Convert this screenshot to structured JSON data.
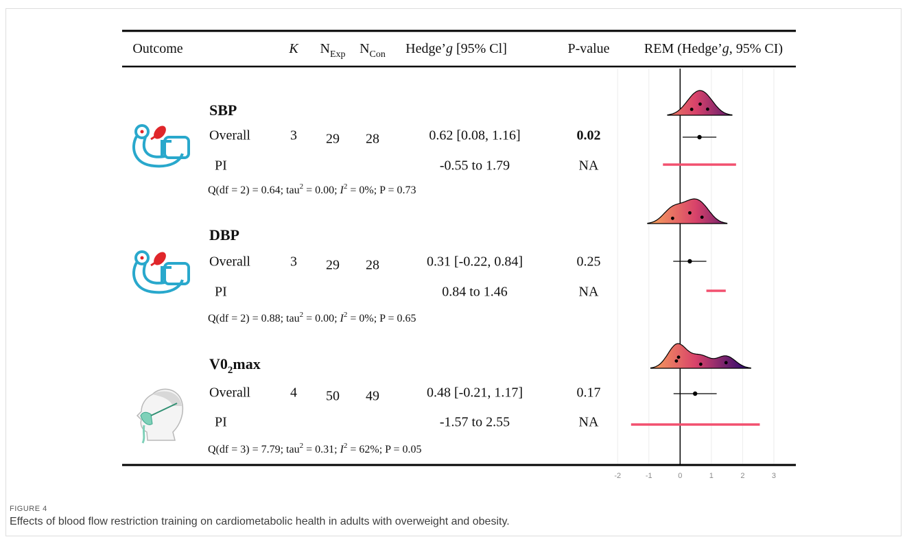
{
  "header": {
    "columns": [
      [
        {
          "text": "Outcome"
        }
      ],
      [
        {
          "text": "K",
          "style": "i"
        }
      ],
      [
        {
          "text": "N"
        },
        {
          "text": "Exp",
          "style": "sub"
        }
      ],
      [
        {
          "text": "N"
        },
        {
          "text": "Con",
          "style": "sub"
        }
      ],
      [
        {
          "text": "Hedge’"
        },
        {
          "text": "g",
          "style": "i"
        },
        {
          "text": " [95% Cl]"
        }
      ],
      [
        {
          "text": "P-value"
        }
      ],
      [
        {
          "text": "REM (Hedge’"
        },
        {
          "text": "g",
          "style": "i"
        },
        {
          "text": ", 95% CI)"
        }
      ]
    ]
  },
  "outcomes": [
    {
      "name": [
        {
          "text": "SBP"
        }
      ],
      "overall_label": "Overall",
      "k": 3,
      "n_exp": 29,
      "n_con": 28,
      "estimate": {
        "g": 0.62,
        "ci": [
          0.08,
          1.16
        ],
        "label": "0.62 [0.08, 1.16]"
      },
      "p": 0.02,
      "p_bold": true,
      "pi_label": "PI",
      "pi": [
        -0.55,
        1.79
      ],
      "pi_text": "-0.55 to 1.79",
      "pi_p": "NA",
      "studies": [
        0.37,
        0.64,
        0.88
      ],
      "heterogeneity": [
        {
          "text": "Q(df = 2) = 0.64; tau"
        },
        {
          "text": "2",
          "style": "sup"
        },
        {
          "text": " = 0.00; "
        },
        {
          "text": "I",
          "style": "i"
        },
        {
          "text": "2",
          "style": "sup"
        },
        {
          "text": " = 0%; P = 0.73"
        }
      ]
    },
    {
      "name": [
        {
          "text": "DBP"
        }
      ],
      "overall_label": "Overall",
      "k": 3,
      "n_exp": 29,
      "n_con": 28,
      "estimate": {
        "g": 0.31,
        "ci": [
          -0.22,
          0.84
        ],
        "label": "0.31 [-0.22, 0.84]"
      },
      "p": 0.25,
      "p_bold": false,
      "pi_label": "PI",
      "pi": [
        0.84,
        1.46
      ],
      "pi_text": "0.84 to 1.46",
      "pi_p": "NA",
      "studies": [
        -0.24,
        0.31,
        0.7
      ],
      "heterogeneity": [
        {
          "text": "Q(df = 2) = 0.88; tau"
        },
        {
          "text": "2",
          "style": "sup"
        },
        {
          "text": " = 0.00; "
        },
        {
          "text": "I",
          "style": "i"
        },
        {
          "text": "2",
          "style": "sup"
        },
        {
          "text": " = 0%; P = 0.65"
        }
      ]
    },
    {
      "name": [
        {
          "text": "V0"
        },
        {
          "text": "2",
          "style": "sub"
        },
        {
          "text": "max"
        }
      ],
      "overall_label": "Overall",
      "k": 4,
      "n_exp": 50,
      "n_con": 49,
      "estimate": {
        "g": 0.48,
        "ci": [
          -0.21,
          1.17
        ],
        "label": "0.48 [-0.21, 1.17]"
      },
      "p": 0.17,
      "p_bold": false,
      "pi_label": "PI",
      "pi": [
        -1.57,
        2.55
      ],
      "pi_text": "-1.57 to 2.55",
      "pi_p": "NA",
      "studies": [
        -0.12,
        -0.05,
        0.66,
        1.47
      ],
      "heterogeneity": [
        {
          "text": "Q(df = 3) = 7.79; tau"
        },
        {
          "text": "2",
          "style": "sup"
        },
        {
          "text": " = 0.31; "
        },
        {
          "text": "I",
          "style": "i"
        },
        {
          "text": "2",
          "style": "sup"
        },
        {
          "text": " = 62%; P = 0.05"
        }
      ]
    }
  ],
  "forest": {
    "xlim": [
      -2.4,
      3.55
    ],
    "xticks": [
      -2,
      -1,
      0,
      1,
      2,
      3
    ],
    "ci_color": "#000000",
    "pi_color": "#f2506f",
    "density_colors": [
      "#f7a35c",
      "#d8426a",
      "#3a0f6e"
    ]
  },
  "caption": {
    "label": "FIGURE 4",
    "text": "Effects of blood flow restriction training on cardiometabolic health in adults with overweight and obesity."
  }
}
